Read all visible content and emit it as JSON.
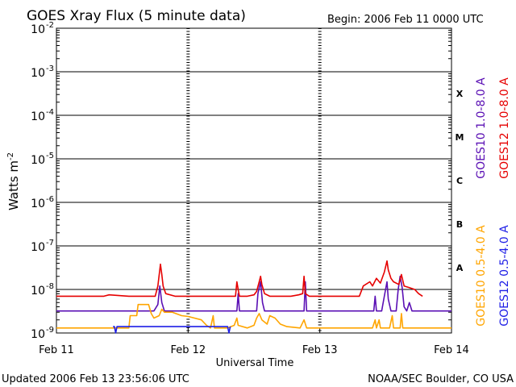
{
  "chart_data": {
    "type": "line",
    "title": "GOES Xray Flux (5 minute data)",
    "begin_label": "Begin:  2006 Feb 11 0000 UTC",
    "xlabel": "Universal Time",
    "ylabel": "Watts m",
    "ylabel_superscript": "-2",
    "y_scale": "log",
    "ylim": [
      1e-09,
      0.01
    ],
    "y_ticks": [
      {
        "base": "10",
        "exp": "-2",
        "value": 0.01
      },
      {
        "base": "10",
        "exp": "-3",
        "value": 0.001
      },
      {
        "base": "10",
        "exp": "-4",
        "value": 0.0001
      },
      {
        "base": "10",
        "exp": "-5",
        "value": 1e-05
      },
      {
        "base": "10",
        "exp": "-6",
        "value": 1e-06
      },
      {
        "base": "10",
        "exp": "-7",
        "value": 1e-07
      },
      {
        "base": "10",
        "exp": "-8",
        "value": 1e-08
      },
      {
        "base": "10",
        "exp": "-9",
        "value": 1e-09
      }
    ],
    "xlim_days": [
      0,
      3
    ],
    "x_ticks": [
      {
        "label": "Feb 11",
        "day": 0
      },
      {
        "label": "Feb 12",
        "day": 1
      },
      {
        "label": "Feb 13",
        "day": 2
      },
      {
        "label": "Feb 14",
        "day": 3
      }
    ],
    "flare_classes": [
      {
        "label": "X",
        "value": 0.00031623
      },
      {
        "label": "M",
        "value": 3.1623e-05
      },
      {
        "label": "C",
        "value": 3.1623e-06
      },
      {
        "label": "B",
        "value": 3.1623e-07
      },
      {
        "label": "A",
        "value": 3.1623e-08
      }
    ],
    "grid": true,
    "gridlines_y": [
      0.001,
      0.0001,
      1e-05,
      1e-06,
      1e-07,
      1e-08
    ],
    "series": [
      {
        "name": "GOES10 1.0-8.0 A",
        "color": "#5a0fb4",
        "points": [
          [
            0.0,
            3.2e-09
          ],
          [
            0.37,
            3.2e-09
          ],
          [
            0.4,
            3.2e-09
          ],
          [
            0.55,
            3.2e-09
          ],
          [
            0.74,
            3.2e-09
          ],
          [
            0.77,
            4.5e-09
          ],
          [
            0.785,
            1.2e-08
          ],
          [
            0.8,
            5e-09
          ],
          [
            0.82,
            3.2e-09
          ],
          [
            0.95,
            3.2e-09
          ],
          [
            1.0,
            3.2e-09
          ],
          [
            1.37,
            3.2e-09
          ],
          [
            1.38,
            8e-09
          ],
          [
            1.39,
            3.2e-09
          ],
          [
            1.52,
            3.2e-09
          ],
          [
            1.53,
            8e-09
          ],
          [
            1.55,
            1.5e-08
          ],
          [
            1.565,
            5e-09
          ],
          [
            1.58,
            3.2e-09
          ],
          [
            1.88,
            3.2e-09
          ],
          [
            1.89,
            1.5e-08
          ],
          [
            1.9,
            3.2e-09
          ],
          [
            2.0,
            3.2e-09
          ],
          [
            2.41,
            3.2e-09
          ],
          [
            2.42,
            7e-09
          ],
          [
            2.43,
            3.2e-09
          ],
          [
            2.47,
            3.2e-09
          ],
          [
            2.49,
            7e-09
          ],
          [
            2.51,
            1.5e-08
          ],
          [
            2.52,
            6e-09
          ],
          [
            2.54,
            3.2e-09
          ],
          [
            2.58,
            3.2e-09
          ],
          [
            2.595,
            1e-08
          ],
          [
            2.61,
            2e-08
          ],
          [
            2.625,
            1.1e-08
          ],
          [
            2.64,
            4e-09
          ],
          [
            2.66,
            3.2e-09
          ],
          [
            2.68,
            5e-09
          ],
          [
            2.7,
            3.2e-09
          ],
          [
            3.0,
            3.2e-09
          ]
        ]
      },
      {
        "name": "GOES12 1.0-8.0 A",
        "color": "#e60000",
        "points": [
          [
            0.0,
            7e-09
          ],
          [
            0.36,
            7e-09
          ],
          [
            0.4,
            7.5e-09
          ],
          [
            0.55,
            7e-09
          ],
          [
            0.72,
            7e-09
          ],
          [
            0.75,
            7e-09
          ],
          [
            0.77,
            1.2e-08
          ],
          [
            0.79,
            3.8e-08
          ],
          [
            0.8,
            2.2e-08
          ],
          [
            0.81,
            1.2e-08
          ],
          [
            0.83,
            8e-09
          ],
          [
            0.9,
            7e-09
          ],
          [
            1.0,
            7e-09
          ],
          [
            1.36,
            7e-09
          ],
          [
            1.37,
            1.5e-08
          ],
          [
            1.38,
            1e-08
          ],
          [
            1.39,
            7e-09
          ],
          [
            1.45,
            7e-09
          ],
          [
            1.5,
            7.5e-09
          ],
          [
            1.52,
            9e-09
          ],
          [
            1.54,
            1.5e-08
          ],
          [
            1.55,
            2e-08
          ],
          [
            1.56,
            1.3e-08
          ],
          [
            1.58,
            8e-09
          ],
          [
            1.62,
            7e-09
          ],
          [
            1.78,
            7e-09
          ],
          [
            1.84,
            7.5e-09
          ],
          [
            1.87,
            8e-09
          ],
          [
            1.88,
            2e-08
          ],
          [
            1.89,
            8e-09
          ],
          [
            1.92,
            7e-09
          ],
          [
            2.0,
            7e-09
          ],
          [
            2.24,
            7e-09
          ],
          [
            2.3,
            7e-09
          ],
          [
            2.33,
            1.2e-08
          ],
          [
            2.38,
            1.5e-08
          ],
          [
            2.4,
            1.2e-08
          ],
          [
            2.43,
            1.8e-08
          ],
          [
            2.46,
            1.4e-08
          ],
          [
            2.49,
            2.5e-08
          ],
          [
            2.51,
            4.5e-08
          ],
          [
            2.52,
            2.8e-08
          ],
          [
            2.54,
            1.8e-08
          ],
          [
            2.56,
            1.5e-08
          ],
          [
            2.6,
            1.3e-08
          ],
          [
            2.62,
            2.2e-08
          ],
          [
            2.64,
            1.2e-08
          ],
          [
            2.68,
            1.1e-08
          ],
          [
            2.72,
            1e-08
          ],
          [
            2.75,
            8e-09
          ],
          [
            2.78,
            7e-09
          ]
        ]
      },
      {
        "name": "GOES10 0.5-4.0 A",
        "color": "#ffa500",
        "points": [
          [
            0.0,
            1.3e-09
          ],
          [
            0.44,
            1.3e-09
          ],
          [
            0.55,
            1.3e-09
          ],
          [
            0.56,
            2.5e-09
          ],
          [
            0.61,
            2.5e-09
          ],
          [
            0.62,
            4.5e-09
          ],
          [
            0.7,
            4.5e-09
          ],
          [
            0.72,
            2.8e-09
          ],
          [
            0.74,
            2.2e-09
          ],
          [
            0.78,
            2.5e-09
          ],
          [
            0.8,
            3.5e-09
          ],
          [
            0.82,
            3e-09
          ],
          [
            0.88,
            3e-09
          ],
          [
            0.95,
            2.5e-09
          ],
          [
            1.0,
            2.4e-09
          ],
          [
            1.1,
            2e-09
          ],
          [
            1.14,
            1.5e-09
          ],
          [
            1.17,
            1.3e-09
          ],
          [
            1.19,
            2.5e-09
          ],
          [
            1.2,
            1.3e-09
          ],
          [
            1.3,
            1.3e-09
          ],
          [
            1.35,
            1.5e-09
          ],
          [
            1.37,
            2.2e-09
          ],
          [
            1.38,
            1.5e-09
          ],
          [
            1.45,
            1.3e-09
          ],
          [
            1.5,
            1.5e-09
          ],
          [
            1.52,
            2.2e-09
          ],
          [
            1.54,
            2.8e-09
          ],
          [
            1.56,
            2e-09
          ],
          [
            1.6,
            1.6e-09
          ],
          [
            1.62,
            2.5e-09
          ],
          [
            1.66,
            2.2e-09
          ],
          [
            1.7,
            1.6e-09
          ],
          [
            1.75,
            1.4e-09
          ],
          [
            1.85,
            1.3e-09
          ],
          [
            1.88,
            2e-09
          ],
          [
            1.9,
            1.3e-09
          ],
          [
            2.4,
            1.3e-09
          ],
          [
            2.42,
            2e-09
          ],
          [
            2.43,
            1.3e-09
          ],
          [
            2.45,
            2e-09
          ],
          [
            2.46,
            1.3e-09
          ],
          [
            2.53,
            1.3e-09
          ],
          [
            2.55,
            2.5e-09
          ],
          [
            2.56,
            1.3e-09
          ],
          [
            2.61,
            1.3e-09
          ],
          [
            2.62,
            2.8e-09
          ],
          [
            2.63,
            1.3e-09
          ],
          [
            3.0,
            1.3e-09
          ]
        ]
      },
      {
        "name": "GOES12 0.5-4.0 A",
        "color": "#1e1ee6",
        "points": [
          [
            0.43,
            1.4e-09
          ],
          [
            0.44,
            1.4e-09
          ],
          [
            0.45,
            1e-09
          ],
          [
            0.46,
            1.4e-09
          ],
          [
            1.3,
            1.4e-09
          ],
          [
            1.31,
            1e-09
          ],
          [
            1.32,
            1.4e-09
          ]
        ]
      }
    ],
    "legend_right": [
      {
        "text": "GOES10 1.0-8.0 A",
        "color": "#5a0fb4"
      },
      {
        "text": "GOES12 1.0-8.0 A",
        "color": "#e60000"
      },
      {
        "text": "GOES10 0.5-4.0 A",
        "color": "#ffa500"
      },
      {
        "text": "GOES12 0.5-4.0 A",
        "color": "#1e1ee6"
      }
    ]
  },
  "footer": {
    "updated": "Updated 2006 Feb 13 23:56:06 UTC",
    "source": "NOAA/SEC Boulder, CO USA"
  }
}
